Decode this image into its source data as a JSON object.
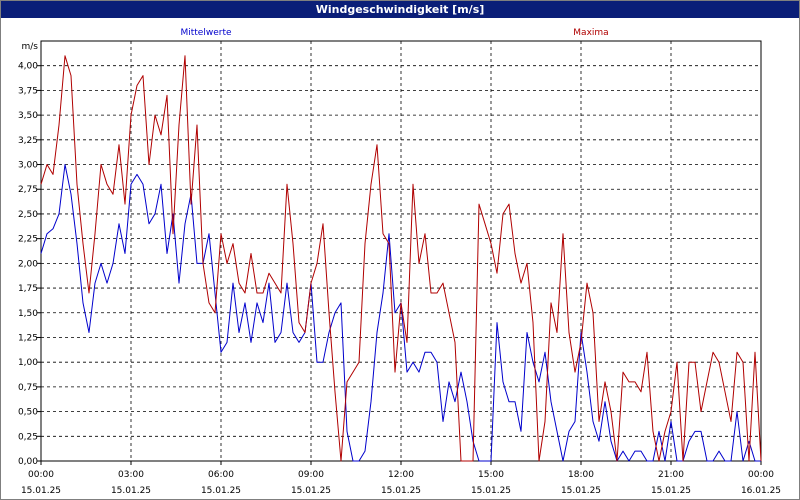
{
  "window": {
    "title": "Windgeschwindigkeit [m/s]"
  },
  "chart_data": {
    "type": "line",
    "title": "Windgeschwindigkeit [m/s]",
    "ylabel": "m/s",
    "ylim": [
      0,
      4.25
    ],
    "yticks": [
      "0,00",
      "0,25",
      "0,50",
      "0,75",
      "1,00",
      "1,25",
      "1,50",
      "1,75",
      "2,00",
      "2,25",
      "2,50",
      "2,75",
      "3,00",
      "3,25",
      "3,50",
      "3,75",
      "4,00"
    ],
    "xlim_hours": [
      0,
      24
    ],
    "xticks": [
      {
        "time": "00:00",
        "date": "15.01.25"
      },
      {
        "time": "03:00",
        "date": "15.01.25"
      },
      {
        "time": "06:00",
        "date": "15.01.25"
      },
      {
        "time": "09:00",
        "date": "15.01.25"
      },
      {
        "time": "12:00",
        "date": "15.01.25"
      },
      {
        "time": "15:00",
        "date": "15.01.25"
      },
      {
        "time": "18:00",
        "date": "15.01.25"
      },
      {
        "time": "21:00",
        "date": "15.01.25"
      },
      {
        "time": "00:00",
        "date": "16.01.25"
      }
    ],
    "grid": true,
    "legend_position": "top",
    "series": [
      {
        "name": "Mittelwerte",
        "color": "#0000cc",
        "x_hours": [
          0.0,
          0.2,
          0.4,
          0.6,
          0.8,
          1.0,
          1.2,
          1.4,
          1.6,
          1.8,
          2.0,
          2.2,
          2.4,
          2.6,
          2.8,
          3.0,
          3.2,
          3.4,
          3.6,
          3.8,
          4.0,
          4.2,
          4.4,
          4.6,
          4.8,
          5.0,
          5.2,
          5.4,
          5.6,
          5.8,
          6.0,
          6.2,
          6.4,
          6.6,
          6.8,
          7.0,
          7.2,
          7.4,
          7.6,
          7.8,
          8.0,
          8.2,
          8.4,
          8.6,
          8.8,
          9.0,
          9.2,
          9.4,
          9.6,
          9.8,
          10.0,
          10.2,
          10.4,
          10.6,
          10.8,
          11.0,
          11.2,
          11.4,
          11.6,
          11.8,
          12.0,
          12.2,
          12.4,
          12.6,
          12.8,
          13.0,
          13.2,
          13.4,
          13.6,
          13.8,
          14.0,
          14.2,
          14.4,
          14.6,
          14.8,
          15.0,
          15.2,
          15.4,
          15.6,
          15.8,
          16.0,
          16.2,
          16.4,
          16.6,
          16.8,
          17.0,
          17.2,
          17.4,
          17.6,
          17.8,
          18.0,
          18.2,
          18.4,
          18.6,
          18.8,
          19.0,
          19.2,
          19.4,
          19.6,
          19.8,
          20.0,
          20.2,
          20.4,
          20.6,
          20.8,
          21.0,
          21.2,
          21.4,
          21.6,
          21.8,
          22.0,
          22.2,
          22.4,
          22.6,
          22.8,
          23.0,
          23.2,
          23.4,
          23.6,
          23.8,
          24.0
        ],
        "values": [
          2.1,
          2.3,
          2.35,
          2.5,
          3.0,
          2.7,
          2.2,
          1.6,
          1.3,
          1.8,
          2.0,
          1.8,
          2.0,
          2.4,
          2.1,
          2.8,
          2.9,
          2.8,
          2.4,
          2.5,
          2.8,
          2.1,
          2.5,
          1.8,
          2.4,
          2.7,
          2.0,
          2.0,
          2.3,
          1.7,
          1.1,
          1.2,
          1.8,
          1.3,
          1.6,
          1.2,
          1.6,
          1.4,
          1.8,
          1.2,
          1.3,
          1.8,
          1.3,
          1.2,
          1.3,
          1.8,
          1.0,
          1.0,
          1.3,
          1.5,
          1.6,
          0.3,
          0.0,
          0.0,
          0.1,
          0.6,
          1.3,
          1.7,
          2.3,
          1.5,
          1.6,
          0.9,
          1.0,
          0.9,
          1.1,
          1.1,
          1.0,
          0.4,
          0.8,
          0.6,
          0.9,
          0.6,
          0.2,
          0.0,
          0.0,
          0.0,
          1.4,
          0.8,
          0.6,
          0.6,
          0.3,
          1.3,
          1.0,
          0.8,
          1.1,
          0.6,
          0.3,
          0.0,
          0.3,
          0.4,
          1.3,
          0.9,
          0.4,
          0.2,
          0.6,
          0.2,
          0.0,
          0.1,
          0.0,
          0.1,
          0.1,
          0.0,
          0.0,
          0.3,
          0.0,
          0.4,
          0.0,
          0.0,
          0.2,
          0.3,
          0.3,
          0.0,
          0.0,
          0.1,
          0.0,
          0.0,
          0.5,
          0.0,
          0.2,
          0.0,
          0.0
        ]
      },
      {
        "name": "Maxima",
        "color": "#b00000",
        "x_hours": [
          0.0,
          0.2,
          0.4,
          0.6,
          0.8,
          1.0,
          1.2,
          1.4,
          1.6,
          1.8,
          2.0,
          2.2,
          2.4,
          2.6,
          2.8,
          3.0,
          3.2,
          3.4,
          3.6,
          3.8,
          4.0,
          4.2,
          4.4,
          4.6,
          4.8,
          5.0,
          5.2,
          5.4,
          5.6,
          5.8,
          6.0,
          6.2,
          6.4,
          6.6,
          6.8,
          7.0,
          7.2,
          7.4,
          7.6,
          7.8,
          8.0,
          8.2,
          8.4,
          8.6,
          8.8,
          9.0,
          9.2,
          9.4,
          9.6,
          9.8,
          10.0,
          10.2,
          10.4,
          10.6,
          10.8,
          11.0,
          11.2,
          11.4,
          11.6,
          11.8,
          12.0,
          12.2,
          12.4,
          12.6,
          12.8,
          13.0,
          13.2,
          13.4,
          13.6,
          13.8,
          14.0,
          14.2,
          14.4,
          14.6,
          14.8,
          15.0,
          15.2,
          15.4,
          15.6,
          15.8,
          16.0,
          16.2,
          16.4,
          16.6,
          16.8,
          17.0,
          17.2,
          17.4,
          17.6,
          17.8,
          18.0,
          18.2,
          18.4,
          18.6,
          18.8,
          19.0,
          19.2,
          19.4,
          19.6,
          19.8,
          20.0,
          20.2,
          20.4,
          20.6,
          20.8,
          21.0,
          21.2,
          21.4,
          21.6,
          21.8,
          22.0,
          22.2,
          22.4,
          22.6,
          22.8,
          23.0,
          23.2,
          23.4,
          23.6,
          23.8,
          24.0
        ],
        "values": [
          2.8,
          3.0,
          2.9,
          3.4,
          4.1,
          3.9,
          2.8,
          2.2,
          1.7,
          2.3,
          3.0,
          2.8,
          2.7,
          3.2,
          2.6,
          3.5,
          3.8,
          3.9,
          3.0,
          3.5,
          3.3,
          3.7,
          2.3,
          3.4,
          4.1,
          2.6,
          3.4,
          2.0,
          1.6,
          1.5,
          2.3,
          2.0,
          2.2,
          1.8,
          1.7,
          2.1,
          1.7,
          1.7,
          1.9,
          1.8,
          1.7,
          2.8,
          2.2,
          1.4,
          1.3,
          1.8,
          2.0,
          2.4,
          1.5,
          0.7,
          0.0,
          0.8,
          0.9,
          1.0,
          2.2,
          2.8,
          3.2,
          2.3,
          2.2,
          0.9,
          1.6,
          1.2,
          2.8,
          2.0,
          2.3,
          1.7,
          1.7,
          1.8,
          1.5,
          1.2,
          0.0,
          0.0,
          0.0,
          2.6,
          2.4,
          2.2,
          1.9,
          2.5,
          2.6,
          2.1,
          1.8,
          2.0,
          1.4,
          0.0,
          0.4,
          1.6,
          1.3,
          2.3,
          1.3,
          0.9,
          1.2,
          1.8,
          1.5,
          0.4,
          0.8,
          0.5,
          0.0,
          0.9,
          0.8,
          0.8,
          0.7,
          1.1,
          0.3,
          0.0,
          0.3,
          0.5,
          1.0,
          0.0,
          1.0,
          1.0,
          0.5,
          0.8,
          1.1,
          1.0,
          0.7,
          0.4,
          1.1,
          1.0,
          0.0,
          1.1,
          0.0
        ]
      }
    ]
  }
}
